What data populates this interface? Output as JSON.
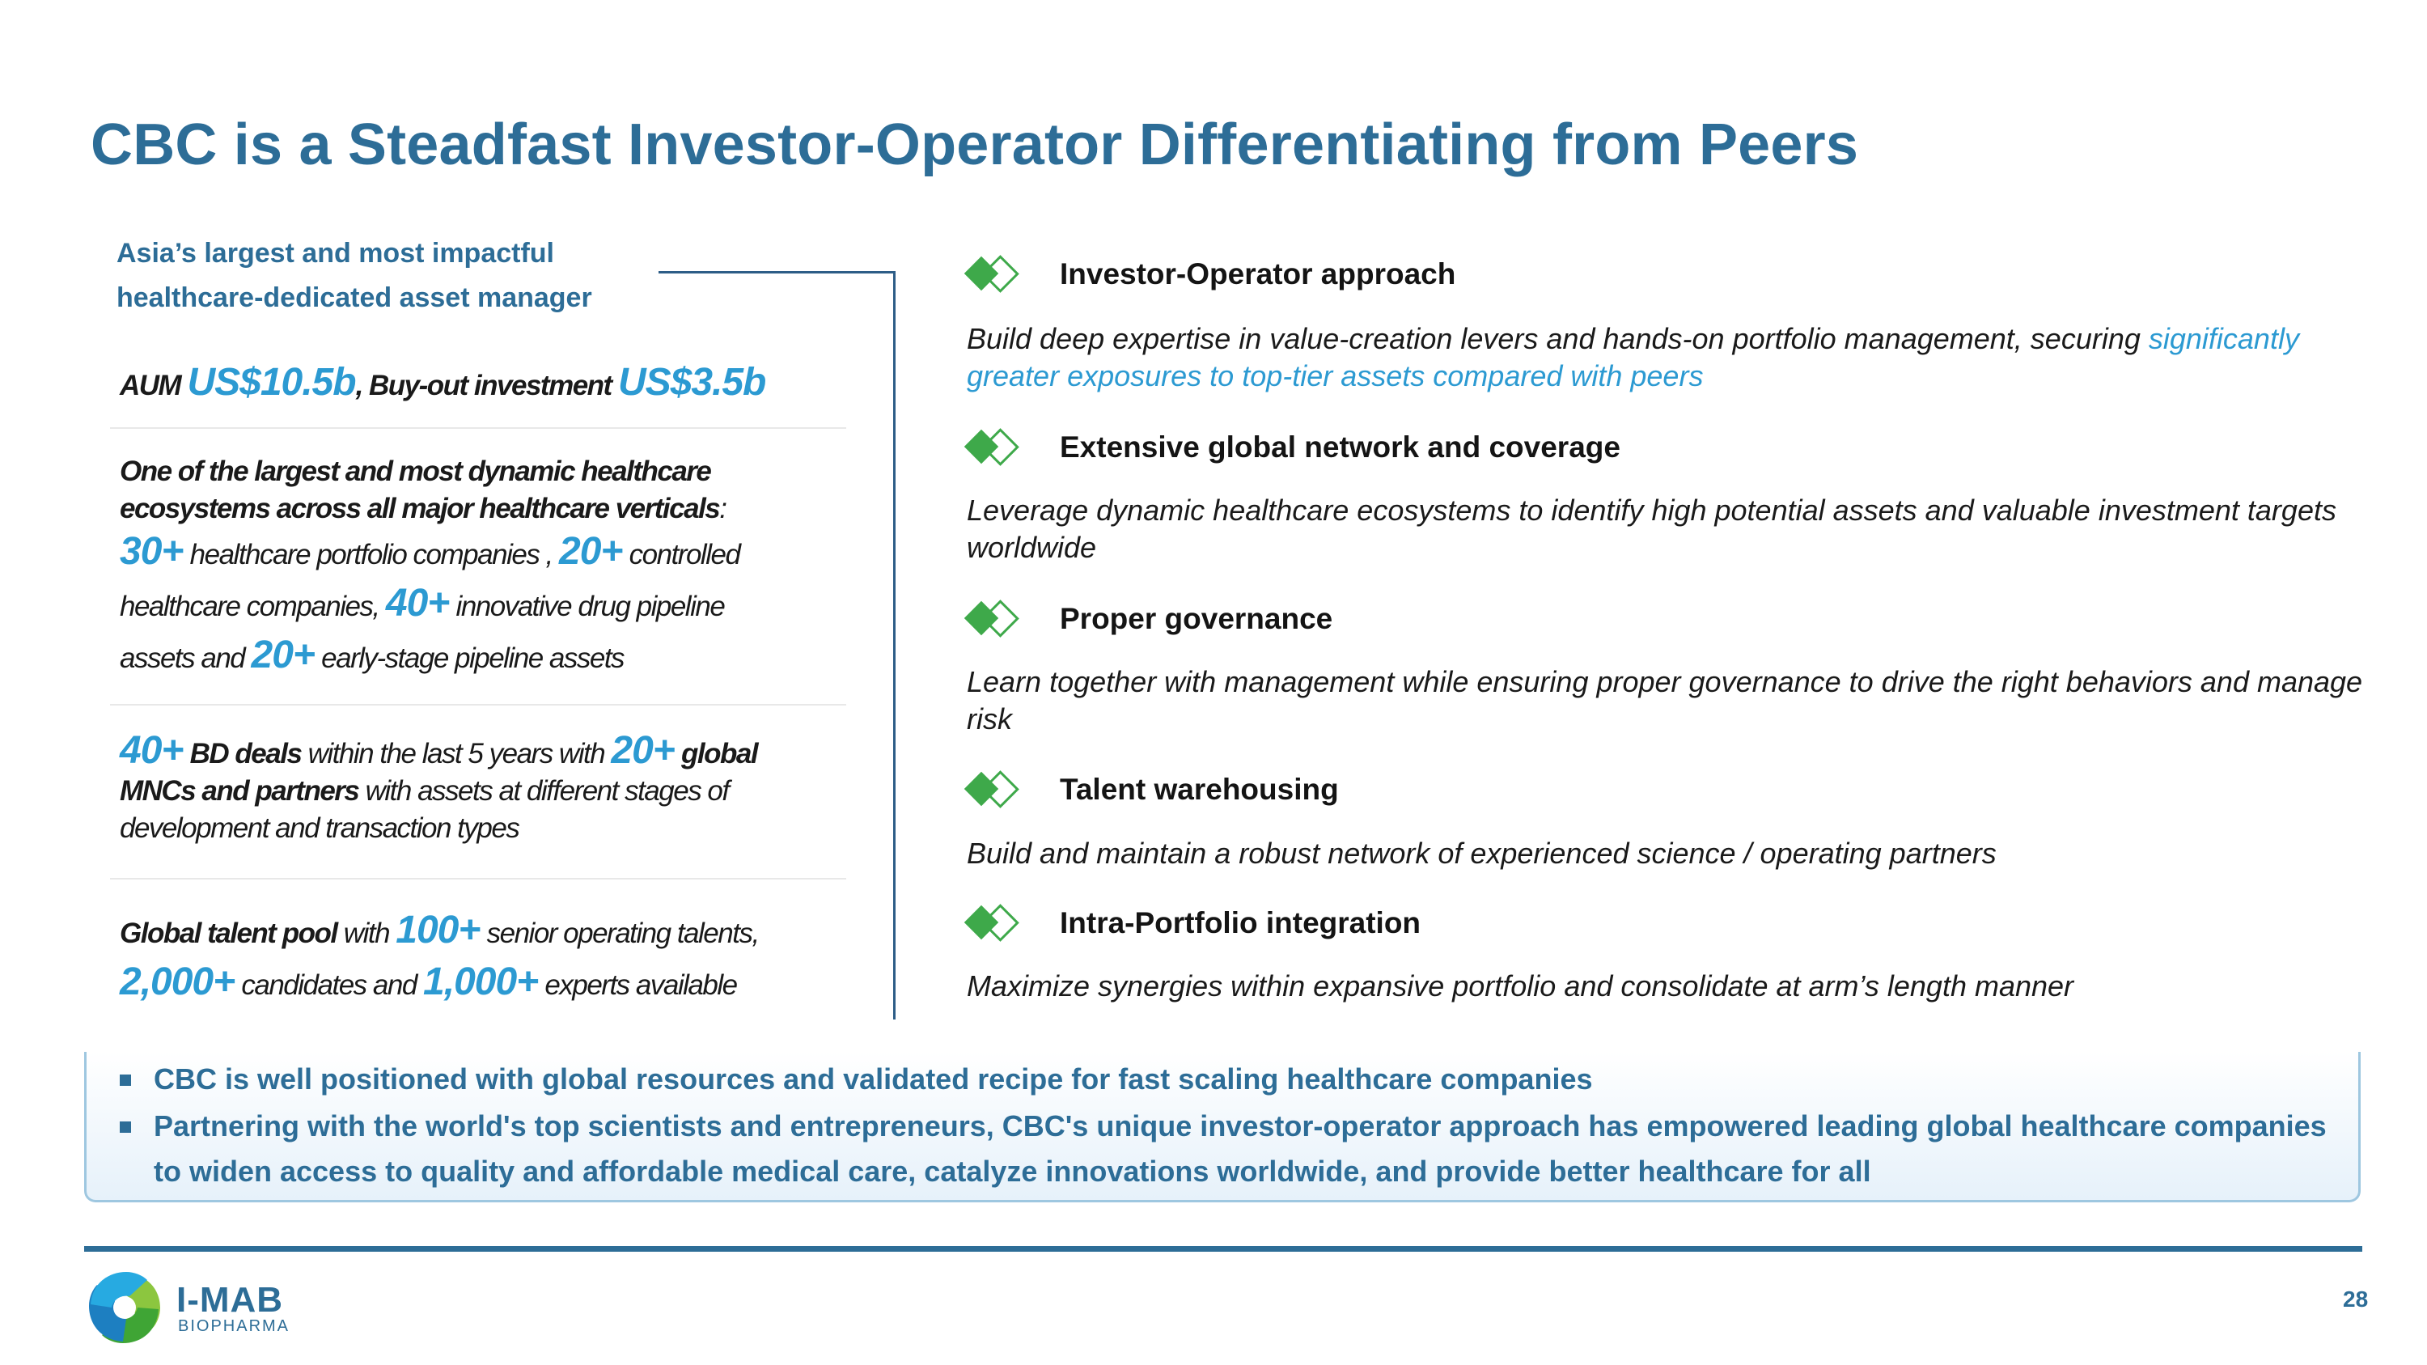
{
  "title": "CBC is a Steadfast Investor-Operator Differentiating from Peers",
  "left": {
    "heading_line1": "Asia’s largest and most impactful",
    "heading_line2": "healthcare-dedicated asset manager",
    "aum": {
      "label1": "AUM ",
      "value1": "US$10.5b",
      "label2": ", Buy-out investment ",
      "value2": "US$3.5b"
    },
    "ecosystem": {
      "bold_line1": "One of the largest and most dynamic healthcare",
      "bold_line2": "ecosystems across all major healthcare verticals",
      "colon": ":",
      "n1": "30+",
      "t1": " healthcare portfolio companies , ",
      "n2": "20+",
      "t2": " controlled",
      "t3": "healthcare companies, ",
      "n3": "40+",
      "t4": " innovative drug pipeline",
      "t5": "assets and ",
      "n4": "20+",
      "t6": " early-stage pipeline assets"
    },
    "bd": {
      "n1": "40+",
      "b1": " BD deals",
      "t1": " within the last 5 years with ",
      "n2": "20+",
      "b2": " global",
      "b3": "MNCs and partners",
      "t2": " with assets at different stages of",
      "t3": "development and transaction types"
    },
    "talent": {
      "b1": "Global talent pool",
      "t1": " with ",
      "n1": "100+",
      "t2": " senior operating talents,",
      "n2": "2,000+",
      "t3": " candidates and ",
      "n3": "1,000+",
      "t4": " experts available"
    }
  },
  "items": [
    {
      "title": "Investor-Operator approach",
      "desc": "Build deep expertise in value-creation levers and hands-on portfolio management, securing ",
      "desc_highlight": "significantly greater exposures to top-tier assets compared with peers"
    },
    {
      "title": "Extensive global network and coverage",
      "desc": "Leverage dynamic healthcare ecosystems to identify high potential assets and valuable investment targets worldwide"
    },
    {
      "title": "Proper governance",
      "desc": "Learn together with management while ensuring proper governance to drive the right behaviors and manage risk"
    },
    {
      "title": "Talent warehousing",
      "desc": "Build and maintain a robust network of experienced science / operating partners"
    },
    {
      "title": "Intra-Portfolio integration",
      "desc": "Maximize synergies within expansive portfolio and consolidate at arm’s length manner"
    }
  ],
  "bullets": [
    "CBC is well positioned with global resources and validated recipe for fast scaling healthcare companies",
    "Partnering with the world's top scientists and entrepreneurs, CBC's unique investor-operator approach has empowered leading global healthcare companies to widen access to quality and affordable medical care, catalyze innovations worldwide, and provide better healthcare for all"
  ],
  "footer": {
    "logo_name": "I-MAB",
    "logo_sub": "BIOPHARMA",
    "page_number": "28"
  },
  "colors": {
    "title_blue": "#2D6D97",
    "accent_blue": "#2C9AD2",
    "diamond_green": "#3EA94A"
  }
}
